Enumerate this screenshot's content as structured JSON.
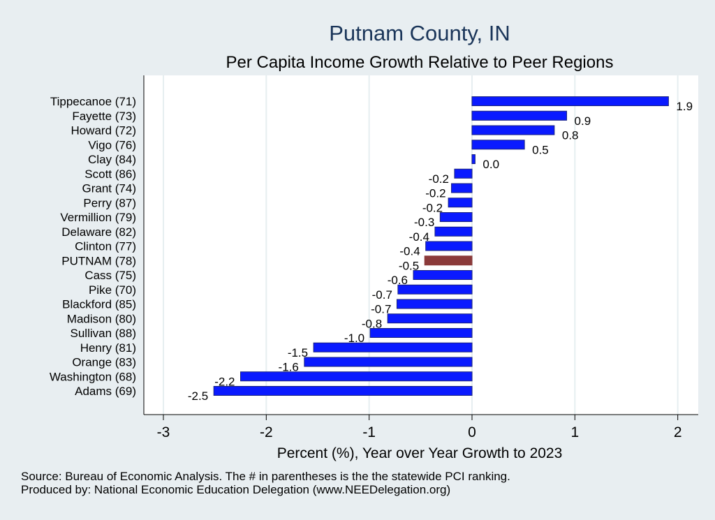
{
  "chart_data": {
    "type": "bar",
    "orientation": "horizontal",
    "title": "Putnam County, IN",
    "subtitle": "Per Capita Income Growth Relative to Peer Regions",
    "xlabel": "Percent (%), Year over Year Growth to 2023",
    "ylabel": "",
    "xlim": [
      -3,
      2.2
    ],
    "xticks": [
      -3,
      -2,
      -1,
      0,
      1,
      2
    ],
    "grid": true,
    "categories": [
      "Tippecanoe (71)",
      "Fayette (73)",
      "Howard (72)",
      "Vigo (76)",
      "Clay (84)",
      "Scott (86)",
      "Grant (74)",
      "Perry (87)",
      "Vermillion (79)",
      "Delaware (82)",
      "Clinton (77)",
      "PUTNAM (78)",
      "Cass (75)",
      "Pike (70)",
      "Blackford (85)",
      "Madison (80)",
      "Sullivan (88)",
      "Henry (81)",
      "Orange (83)",
      "Washington (68)",
      "Adams (69)"
    ],
    "values": [
      1.91,
      0.92,
      0.8,
      0.51,
      0.03,
      -0.17,
      -0.2,
      -0.23,
      -0.31,
      -0.36,
      -0.45,
      -0.46,
      -0.57,
      -0.72,
      -0.73,
      -0.82,
      -0.99,
      -1.54,
      -1.63,
      -2.25,
      -2.51
    ],
    "value_labels": [
      "1.9",
      "0.9",
      "0.8",
      "0.5",
      "0.0",
      "-0.2",
      "-0.2",
      "-0.2",
      "-0.3",
      "-0.4",
      "-0.4",
      "-0.5",
      "-0.6",
      "-0.7",
      "-0.7",
      "-0.8",
      "-1.0",
      "-1.5",
      "-1.6",
      "-2.2",
      "-2.5"
    ],
    "highlight_category": "PUTNAM (78)",
    "colors": {
      "bar": "#0a1aff",
      "bar_outline": "#1a237e",
      "highlight": "#8b3a3a",
      "title": "#1a3559",
      "plot_background": "#ffffff",
      "page_background": "#e8eef1",
      "grid": "#e6eef0"
    }
  },
  "notes": {
    "source": "Source: Bureau of Economic Analysis. The # in parentheses is the the statewide PCI ranking.",
    "produced_by": "Produced by: National Economic Education Delegation (www.NEEDelegation.org)"
  }
}
